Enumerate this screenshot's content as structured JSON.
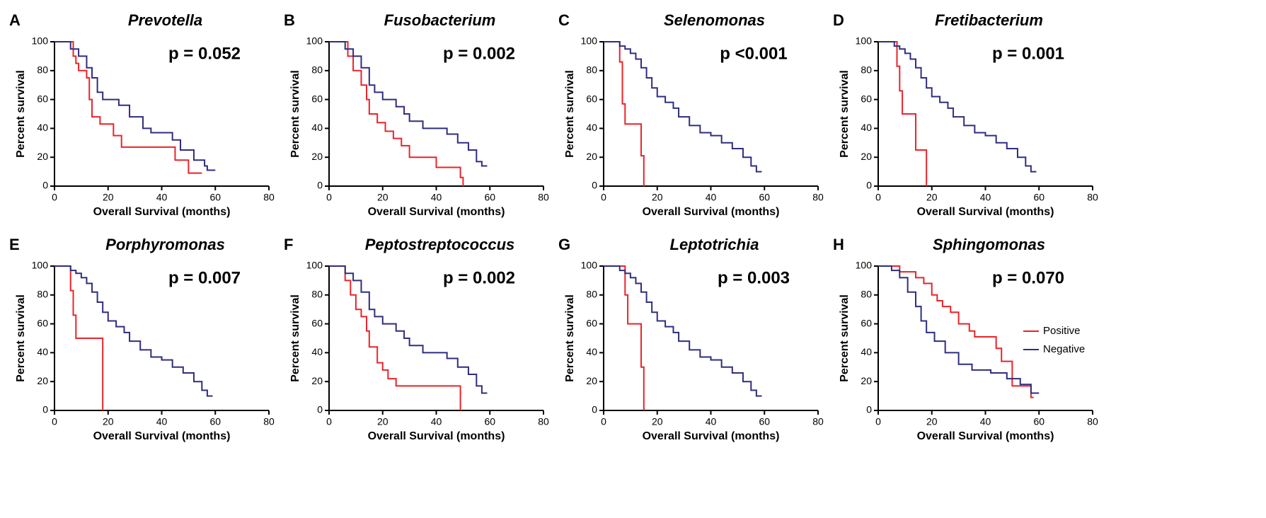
{
  "chart_data": [
    {
      "type": "line",
      "panel": "A",
      "title": "Prevotella",
      "annotation": "p = 0.052",
      "xlabel": "Overall Survival (months)",
      "ylabel": "Percent survival",
      "xlim": [
        0,
        80
      ],
      "xticks": [
        0,
        20,
        40,
        60,
        80
      ],
      "ylim": [
        0,
        100
      ],
      "yticks": [
        0,
        20,
        40,
        60,
        80,
        100
      ],
      "series": [
        {
          "color": "#e8242a",
          "x": [
            0,
            7,
            8,
            9,
            12,
            13,
            14,
            17,
            22,
            25,
            45,
            50,
            55
          ],
          "values": [
            100,
            90,
            85,
            80,
            75,
            60,
            48,
            43,
            35,
            27,
            18,
            9,
            9
          ]
        },
        {
          "color": "#2e2e7e",
          "x": [
            0,
            6,
            9,
            12,
            14,
            16,
            18,
            24,
            28,
            33,
            36,
            44,
            47,
            52,
            56,
            57,
            60
          ],
          "values": [
            100,
            95,
            90,
            82,
            75,
            65,
            60,
            56,
            48,
            40,
            37,
            32,
            25,
            18,
            14,
            11,
            11
          ]
        }
      ]
    },
    {
      "type": "line",
      "panel": "B",
      "title": "Fusobacterium",
      "annotation": "p = 0.002",
      "xlabel": "Overall Survival (months)",
      "ylabel": "Percent survival",
      "xlim": [
        0,
        80
      ],
      "xticks": [
        0,
        20,
        40,
        60,
        80
      ],
      "ylim": [
        0,
        100
      ],
      "yticks": [
        0,
        20,
        40,
        60,
        80,
        100
      ],
      "series": [
        {
          "color": "#e8242a",
          "x": [
            0,
            7,
            9,
            12,
            14,
            15,
            18,
            21,
            24,
            27,
            30,
            40,
            49,
            50
          ],
          "values": [
            100,
            90,
            80,
            70,
            60,
            50,
            44,
            38,
            33,
            28,
            20,
            13,
            6,
            0
          ]
        },
        {
          "color": "#2e2e7e",
          "x": [
            0,
            6,
            9,
            12,
            15,
            17,
            20,
            25,
            28,
            30,
            35,
            44,
            48,
            52,
            55,
            57,
            59
          ],
          "values": [
            100,
            95,
            90,
            82,
            70,
            65,
            60,
            55,
            50,
            45,
            40,
            36,
            30,
            25,
            17,
            14,
            14
          ]
        }
      ]
    },
    {
      "type": "line",
      "panel": "C",
      "title": "Selenomonas",
      "annotation": "p <0.001",
      "xlabel": "Overall Survival (months)",
      "ylabel": "Percent survival",
      "xlim": [
        0,
        80
      ],
      "xticks": [
        0,
        20,
        40,
        60,
        80
      ],
      "ylim": [
        0,
        100
      ],
      "yticks": [
        0,
        20,
        40,
        60,
        80,
        100
      ],
      "series": [
        {
          "color": "#e8242a",
          "x": [
            0,
            6,
            7,
            8,
            14,
            15
          ],
          "values": [
            100,
            86,
            57,
            43,
            21,
            0
          ]
        },
        {
          "color": "#2e2e7e",
          "x": [
            0,
            6,
            8,
            10,
            12,
            14,
            16,
            18,
            20,
            23,
            26,
            28,
            32,
            36,
            40,
            44,
            48,
            52,
            55,
            57,
            59
          ],
          "values": [
            100,
            97,
            95,
            92,
            88,
            82,
            75,
            68,
            62,
            58,
            54,
            48,
            42,
            37,
            35,
            30,
            26,
            20,
            14,
            10,
            10
          ]
        }
      ]
    },
    {
      "type": "line",
      "panel": "D",
      "title": "Fretibacterium",
      "annotation": "p = 0.001",
      "xlabel": "Overall Survival (months)",
      "ylabel": "Percent survival",
      "xlim": [
        0,
        80
      ],
      "xticks": [
        0,
        20,
        40,
        60,
        80
      ],
      "ylim": [
        0,
        100
      ],
      "yticks": [
        0,
        20,
        40,
        60,
        80,
        100
      ],
      "series": [
        {
          "color": "#e8242a",
          "x": [
            0,
            7,
            8,
            9,
            14,
            18
          ],
          "values": [
            100,
            83,
            66,
            50,
            25,
            0
          ]
        },
        {
          "color": "#2e2e7e",
          "x": [
            0,
            6,
            8,
            10,
            12,
            14,
            16,
            18,
            20,
            23,
            26,
            28,
            32,
            36,
            40,
            44,
            48,
            52,
            55,
            57,
            59
          ],
          "values": [
            100,
            97,
            95,
            92,
            88,
            82,
            75,
            68,
            62,
            58,
            54,
            48,
            42,
            37,
            35,
            30,
            26,
            20,
            14,
            10,
            10
          ]
        }
      ]
    },
    {
      "type": "line",
      "panel": "E",
      "title": "Porphyromonas",
      "annotation": "p = 0.007",
      "xlabel": "Overall Survival (months)",
      "ylabel": "Percent survival",
      "xlim": [
        0,
        80
      ],
      "xticks": [
        0,
        20,
        40,
        60,
        80
      ],
      "ylim": [
        0,
        100
      ],
      "yticks": [
        0,
        20,
        40,
        60,
        80,
        100
      ],
      "series": [
        {
          "color": "#e8242a",
          "x": [
            0,
            6,
            7,
            8,
            18
          ],
          "values": [
            100,
            83,
            66,
            50,
            0
          ]
        },
        {
          "color": "#2e2e7e",
          "x": [
            0,
            6,
            8,
            10,
            12,
            14,
            16,
            18,
            20,
            23,
            26,
            28,
            32,
            36,
            40,
            44,
            48,
            52,
            55,
            57,
            59
          ],
          "values": [
            100,
            97,
            95,
            92,
            88,
            82,
            75,
            68,
            62,
            58,
            54,
            48,
            42,
            37,
            35,
            30,
            26,
            20,
            14,
            10,
            10
          ]
        }
      ]
    },
    {
      "type": "line",
      "panel": "F",
      "title": "Peptostreptococcus",
      "annotation": "p = 0.002",
      "xlabel": "Overall Survival (months)",
      "ylabel": "Percent survival",
      "xlim": [
        0,
        80
      ],
      "xticks": [
        0,
        20,
        40,
        60,
        80
      ],
      "ylim": [
        0,
        100
      ],
      "yticks": [
        0,
        20,
        40,
        60,
        80,
        100
      ],
      "series": [
        {
          "color": "#e8242a",
          "x": [
            0,
            6,
            8,
            10,
            12,
            14,
            15,
            18,
            20,
            22,
            25,
            49
          ],
          "values": [
            100,
            90,
            80,
            70,
            65,
            55,
            44,
            33,
            28,
            22,
            17,
            0
          ]
        },
        {
          "color": "#2e2e7e",
          "x": [
            0,
            6,
            9,
            12,
            15,
            17,
            20,
            25,
            28,
            30,
            35,
            44,
            48,
            52,
            55,
            57,
            59
          ],
          "values": [
            100,
            95,
            90,
            82,
            70,
            65,
            60,
            55,
            50,
            45,
            40,
            36,
            30,
            25,
            17,
            12,
            12
          ]
        }
      ]
    },
    {
      "type": "line",
      "panel": "G",
      "title": "Leptotrichia",
      "annotation": "p = 0.003",
      "xlabel": "Overall Survival (months)",
      "ylabel": "Percent survival",
      "xlim": [
        0,
        80
      ],
      "xticks": [
        0,
        20,
        40,
        60,
        80
      ],
      "ylim": [
        0,
        100
      ],
      "yticks": [
        0,
        20,
        40,
        60,
        80,
        100
      ],
      "series": [
        {
          "color": "#e8242a",
          "x": [
            0,
            8,
            9,
            14,
            15
          ],
          "values": [
            100,
            80,
            60,
            30,
            0
          ]
        },
        {
          "color": "#2e2e7e",
          "x": [
            0,
            6,
            8,
            10,
            12,
            14,
            16,
            18,
            20,
            23,
            26,
            28,
            32,
            36,
            40,
            44,
            48,
            52,
            55,
            57,
            59
          ],
          "values": [
            100,
            97,
            95,
            92,
            88,
            82,
            75,
            68,
            62,
            58,
            54,
            48,
            42,
            37,
            35,
            30,
            26,
            20,
            14,
            10,
            10
          ]
        }
      ]
    },
    {
      "type": "line",
      "panel": "H",
      "title": "Sphingomonas",
      "annotation": "p = 0.070",
      "xlabel": "Overall Survival (months)",
      "ylabel": "Percent survival",
      "xlim": [
        0,
        80
      ],
      "xticks": [
        0,
        20,
        40,
        60,
        80
      ],
      "ylim": [
        0,
        100
      ],
      "yticks": [
        0,
        20,
        40,
        60,
        80,
        100
      ],
      "legend": "right",
      "series": [
        {
          "name": "Positive",
          "color": "#e8242a",
          "x": [
            0,
            8,
            14,
            17,
            20,
            22,
            24,
            27,
            30,
            34,
            36,
            44,
            46,
            50,
            57,
            58
          ],
          "values": [
            100,
            96,
            92,
            88,
            80,
            76,
            72,
            68,
            60,
            55,
            51,
            43,
            34,
            17,
            9,
            9
          ]
        },
        {
          "name": "Negative",
          "color": "#2e2e7e",
          "x": [
            0,
            5,
            8,
            11,
            14,
            16,
            18,
            21,
            25,
            30,
            35,
            42,
            48,
            53,
            57,
            60
          ],
          "values": [
            100,
            97,
            92,
            82,
            72,
            62,
            54,
            48,
            40,
            32,
            28,
            26,
            22,
            18,
            12,
            12
          ]
        }
      ]
    }
  ]
}
